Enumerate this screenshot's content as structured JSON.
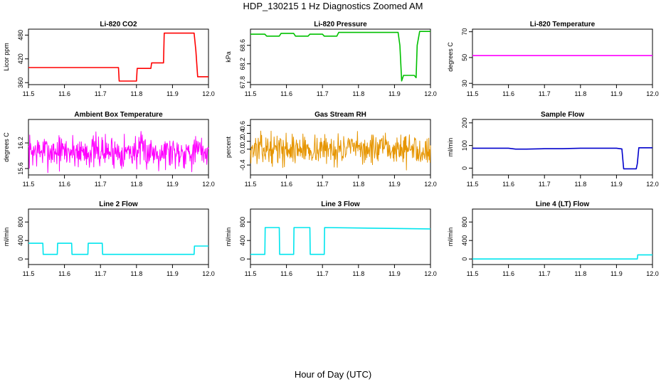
{
  "page": {
    "title": "HDP_130215  1 Hz Diagnostics Zoomed AM",
    "xlabel": "Hour of Day (UTC)"
  },
  "chart_data": [
    {
      "id": "co2",
      "type": "line",
      "title": "Li-820 CO2",
      "ylabel": "Licor ppm",
      "color": "#ff0000",
      "xlim": [
        11.5,
        12.0
      ],
      "ylim": [
        355,
        495
      ],
      "xticks": [
        "11.5",
        "11.6",
        "11.7",
        "11.8",
        "11.9",
        "12.0"
      ],
      "yticks": [
        "360",
        "420",
        "480"
      ],
      "x": [
        11.5,
        11.75,
        11.752,
        11.8,
        11.802,
        11.84,
        11.842,
        11.875,
        11.877,
        11.96,
        11.965,
        11.97,
        12.0
      ],
      "y": [
        398,
        398,
        364,
        364,
        396,
        396,
        410,
        410,
        485,
        485,
        440,
        375,
        375
      ]
    },
    {
      "id": "pressure",
      "type": "line",
      "title": "Li-820 Pressure",
      "ylabel": "kPa",
      "color": "#00c000",
      "xlim": [
        11.5,
        12.0
      ],
      "ylim": [
        67.75,
        68.95
      ],
      "xticks": [
        "11.5",
        "11.6",
        "11.7",
        "11.8",
        "11.9",
        "12.0"
      ],
      "yticks": [
        "67.8",
        "68.2",
        "68.6"
      ],
      "x": [
        11.5,
        11.54,
        11.545,
        11.58,
        11.585,
        11.62,
        11.625,
        11.66,
        11.665,
        11.7,
        11.705,
        11.74,
        11.745,
        11.91,
        11.915,
        11.92,
        11.925,
        11.955,
        11.96,
        11.963,
        11.97,
        12.0
      ],
      "y": [
        68.84,
        68.84,
        68.8,
        68.8,
        68.86,
        68.86,
        68.8,
        68.8,
        68.84,
        68.84,
        68.8,
        68.8,
        68.88,
        68.88,
        68.6,
        67.83,
        67.95,
        67.95,
        67.9,
        68.6,
        68.9,
        68.9
      ]
    },
    {
      "id": "temp",
      "type": "line",
      "title": "Li-820 Temperature",
      "ylabel": "degrees C",
      "color": "#ff00ff",
      "xlim": [
        11.5,
        12.0
      ],
      "ylim": [
        29,
        72
      ],
      "xticks": [
        "11.5",
        "11.6",
        "11.7",
        "11.8",
        "11.9",
        "12.0"
      ],
      "yticks": [
        "30",
        "50",
        "70"
      ],
      "x": [
        11.5,
        12.0
      ],
      "y": [
        51.5,
        51.5
      ]
    },
    {
      "id": "ambient",
      "type": "line",
      "title": "Ambient Box Temperature",
      "ylabel": "degrees C",
      "color": "#ff00ff",
      "xlim": [
        11.5,
        12.0
      ],
      "ylim": [
        15.45,
        16.75
      ],
      "xticks": [
        "11.5",
        "11.6",
        "11.7",
        "11.8",
        "11.9",
        "12.0"
      ],
      "yticks": [
        "15.6",
        "16.2"
      ],
      "noise": {
        "mean": 16.0,
        "amp": 0.3,
        "n": 420,
        "seed": 7
      }
    },
    {
      "id": "rh",
      "type": "line",
      "title": "Gas Stream RH",
      "ylabel": "percent",
      "color": "#e69500",
      "xlim": [
        11.5,
        12.0
      ],
      "ylim": [
        -0.65,
        0.75
      ],
      "xticks": [
        "11.5",
        "11.6",
        "11.7",
        "11.8",
        "11.9",
        "12.0"
      ],
      "yticks": [
        "-0.4",
        "0.0",
        "0.2",
        "0.4",
        "0.6"
      ],
      "noise": {
        "mean": 0.0,
        "amp": 0.28,
        "n": 420,
        "seed": 13
      }
    },
    {
      "id": "sample",
      "type": "line",
      "title": "Sample Flow",
      "ylabel": "ml/min",
      "color": "#0000cc",
      "xlim": [
        11.5,
        12.0
      ],
      "ylim": [
        -30,
        215
      ],
      "xticks": [
        "11.5",
        "11.6",
        "11.7",
        "11.8",
        "11.9",
        "12.0"
      ],
      "yticks": [
        "0",
        "100",
        "200"
      ],
      "x": [
        11.5,
        11.6,
        11.62,
        11.65,
        11.7,
        11.75,
        11.8,
        11.9,
        11.915,
        11.92,
        11.955,
        11.958,
        11.962,
        12.0
      ],
      "y": [
        88,
        88,
        84,
        84,
        86,
        86,
        88,
        88,
        85,
        -3,
        -3,
        20,
        90,
        90
      ]
    },
    {
      "id": "line2",
      "type": "line",
      "title": "Line 2 Flow",
      "ylabel": "ml/min",
      "color": "#00e5ee",
      "xlim": [
        11.5,
        12.0
      ],
      "ylim": [
        -120,
        1080
      ],
      "xticks": [
        "11.5",
        "11.6",
        "11.7",
        "11.8",
        "11.9",
        "12.0"
      ],
      "yticks": [
        "0",
        "400",
        "800"
      ],
      "x": [
        11.5,
        11.54,
        11.541,
        11.58,
        11.581,
        11.62,
        11.621,
        11.665,
        11.666,
        11.705,
        11.706,
        11.96,
        11.961,
        12.0
      ],
      "y": [
        340,
        340,
        100,
        100,
        340,
        340,
        100,
        100,
        340,
        340,
        100,
        100,
        280,
        280
      ]
    },
    {
      "id": "line3",
      "type": "line",
      "title": "Line 3 Flow",
      "ylabel": "ml/min",
      "color": "#00e5ee",
      "xlim": [
        11.5,
        12.0
      ],
      "ylim": [
        -120,
        1080
      ],
      "xticks": [
        "11.5",
        "11.6",
        "11.7",
        "11.8",
        "11.9",
        "12.0"
      ],
      "yticks": [
        "0",
        "400",
        "800"
      ],
      "x": [
        11.5,
        11.54,
        11.541,
        11.58,
        11.581,
        11.62,
        11.621,
        11.665,
        11.666,
        11.705,
        11.706,
        12.0
      ],
      "y": [
        100,
        100,
        680,
        680,
        100,
        100,
        680,
        680,
        100,
        100,
        680,
        650
      ]
    },
    {
      "id": "line4",
      "type": "line",
      "title": "Line 4 (LT) Flow",
      "ylabel": "ml/min",
      "color": "#00e5ee",
      "xlim": [
        11.5,
        12.0
      ],
      "ylim": [
        -120,
        1080
      ],
      "xticks": [
        "11.5",
        "11.6",
        "11.7",
        "11.8",
        "11.9",
        "12.0"
      ],
      "yticks": [
        "0",
        "400",
        "800"
      ],
      "x": [
        11.5,
        11.958,
        11.959,
        12.0
      ],
      "y": [
        0,
        0,
        90,
        90
      ]
    }
  ]
}
